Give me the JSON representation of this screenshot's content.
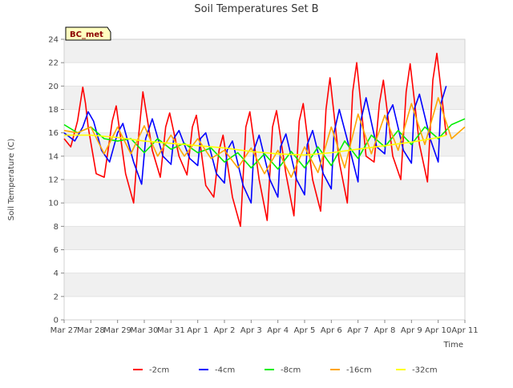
{
  "chart_data": {
    "type": "line",
    "title": "Soil Temperatures Set B",
    "station_label": "BC_met",
    "xlabel": "Time",
    "ylabel": "Soil Temperature (C)",
    "ylim": [
      0,
      24
    ],
    "yticks": [
      0,
      2,
      4,
      6,
      8,
      10,
      12,
      14,
      16,
      18,
      20,
      22,
      24
    ],
    "xlim": [
      0,
      15
    ],
    "xtick_labels": [
      "Mar 27",
      "Mar 28",
      "Mar 29",
      "Mar 30",
      "Mar 31",
      "Apr 1",
      "Apr 2",
      "Apr 3",
      "Apr 4",
      "Apr 5",
      "Apr 6",
      "Apr 7",
      "Apr 8",
      "Apr 9",
      "Apr 10",
      "Apr 11"
    ],
    "grid": "horizontal bands",
    "legend_position": "bottom",
    "series": [
      {
        "name": "-2cm",
        "color": "#ff0000",
        "x": [
          0.0,
          0.25,
          0.5,
          0.7,
          0.8,
          0.9,
          1.2,
          1.5,
          1.8,
          1.95,
          2.3,
          2.6,
          2.8,
          2.95,
          3.3,
          3.6,
          3.8,
          3.95,
          4.3,
          4.6,
          4.8,
          4.95,
          5.3,
          5.6,
          5.8,
          5.95,
          6.3,
          6.6,
          6.8,
          6.95,
          7.3,
          7.6,
          7.8,
          7.95,
          8.3,
          8.6,
          8.8,
          8.95,
          9.3,
          9.6,
          9.8,
          9.95,
          10.3,
          10.6,
          10.8,
          10.95,
          11.3,
          11.6,
          11.8,
          11.95,
          12.3,
          12.6,
          12.8,
          12.95,
          13.3,
          13.6,
          13.8,
          13.95,
          14.3
        ],
        "values": [
          15.5,
          14.8,
          17.0,
          19.9,
          18.5,
          16.5,
          12.5,
          12.2,
          17.0,
          18.3,
          12.5,
          10.0,
          16.0,
          19.5,
          14.5,
          12.2,
          16.5,
          17.7,
          14.0,
          12.4,
          16.5,
          17.5,
          11.5,
          10.5,
          14.5,
          15.8,
          10.5,
          8.0,
          16.5,
          17.8,
          12.0,
          8.5,
          16.5,
          17.9,
          12.5,
          8.9,
          17.0,
          18.5,
          12.0,
          9.3,
          18.0,
          20.7,
          13.5,
          10.0,
          19.5,
          22.0,
          14.0,
          13.5,
          18.5,
          20.5,
          14.0,
          12.0,
          19.5,
          21.9,
          15.0,
          11.8,
          20.5,
          22.8,
          15.8
        ]
      },
      {
        "name": "-4cm",
        "color": "#0000ff",
        "x": [
          0.0,
          0.4,
          0.7,
          0.9,
          1.1,
          1.4,
          1.7,
          2.0,
          2.2,
          2.6,
          2.9,
          3.05,
          3.3,
          3.7,
          4.0,
          4.1,
          4.3,
          4.7,
          5.0,
          5.1,
          5.3,
          5.7,
          6.0,
          6.1,
          6.3,
          6.7,
          7.0,
          7.1,
          7.3,
          7.7,
          8.0,
          8.1,
          8.3,
          8.7,
          9.0,
          9.1,
          9.3,
          9.7,
          10.0,
          10.1,
          10.3,
          10.7,
          11.0,
          11.1,
          11.3,
          11.7,
          12.0,
          12.1,
          12.3,
          12.7,
          13.0,
          13.1,
          13.3,
          13.7,
          14.0,
          14.1,
          14.3
        ],
        "values": [
          16.0,
          15.3,
          16.5,
          17.8,
          17.0,
          14.5,
          13.5,
          16.0,
          16.8,
          13.5,
          11.6,
          15.5,
          17.2,
          14.0,
          13.3,
          15.5,
          16.2,
          13.8,
          13.2,
          15.5,
          16.0,
          12.5,
          11.7,
          14.5,
          15.3,
          11.5,
          10.0,
          14.5,
          15.8,
          12.0,
          10.5,
          14.8,
          15.9,
          12.0,
          10.7,
          15.0,
          16.2,
          12.5,
          11.2,
          16.0,
          18.0,
          14.5,
          11.8,
          17.0,
          19.0,
          14.8,
          14.2,
          17.5,
          18.4,
          14.5,
          13.4,
          18.0,
          19.3,
          15.5,
          13.5,
          18.5,
          20.0
        ]
      },
      {
        "name": "-8cm",
        "color": "#00ee00",
        "x": [
          0.0,
          0.5,
          1.0,
          1.5,
          2.0,
          2.5,
          3.0,
          3.5,
          4.0,
          4.5,
          5.0,
          5.5,
          6.0,
          6.5,
          7.0,
          7.5,
          8.0,
          8.5,
          9.0,
          9.5,
          10.0,
          10.5,
          11.0,
          11.5,
          12.0,
          12.5,
          13.0,
          13.5,
          14.0,
          14.5,
          15.0
        ],
        "values": [
          16.7,
          16.0,
          16.5,
          15.5,
          15.3,
          15.5,
          14.3,
          15.5,
          14.6,
          15.1,
          14.3,
          14.7,
          13.5,
          14.3,
          13.0,
          14.2,
          12.9,
          14.4,
          13.0,
          14.8,
          13.2,
          15.3,
          13.8,
          15.8,
          14.8,
          16.2,
          15.0,
          16.5,
          15.5,
          16.7,
          17.2
        ]
      },
      {
        "name": "-16cm",
        "color": "#ffa500",
        "x": [
          0.0,
          0.5,
          1.0,
          1.5,
          2.0,
          2.5,
          3.0,
          3.5,
          4.0,
          4.5,
          5.0,
          5.5,
          6.0,
          6.5,
          7.0,
          7.5,
          8.0,
          8.5,
          9.0,
          9.5,
          10.0,
          10.5,
          11.0,
          11.5,
          12.0,
          12.5,
          13.0,
          13.5,
          14.0,
          14.5,
          15.0
        ],
        "values": [
          16.2,
          16.0,
          16.5,
          14.2,
          16.5,
          14.2,
          16.6,
          14.0,
          15.8,
          14.0,
          15.5,
          13.8,
          14.5,
          13.0,
          14.7,
          12.5,
          14.5,
          12.2,
          14.8,
          12.6,
          16.5,
          13.0,
          17.6,
          14.2,
          17.5,
          14.5,
          18.5,
          15.0,
          19.0,
          15.5,
          16.5
        ]
      },
      {
        "name": "-32cm",
        "color": "#ffff00",
        "x": [
          0.0,
          1.0,
          2.0,
          3.0,
          4.0,
          5.0,
          6.0,
          7.0,
          8.0,
          9.0,
          10.0,
          11.0,
          12.0,
          13.0,
          14.0,
          14.3
        ],
        "values": [
          15.8,
          15.8,
          15.6,
          15.3,
          15.1,
          14.9,
          14.7,
          14.4,
          14.2,
          14.1,
          14.3,
          14.6,
          14.9,
          15.2,
          15.6,
          15.8
        ]
      }
    ]
  }
}
